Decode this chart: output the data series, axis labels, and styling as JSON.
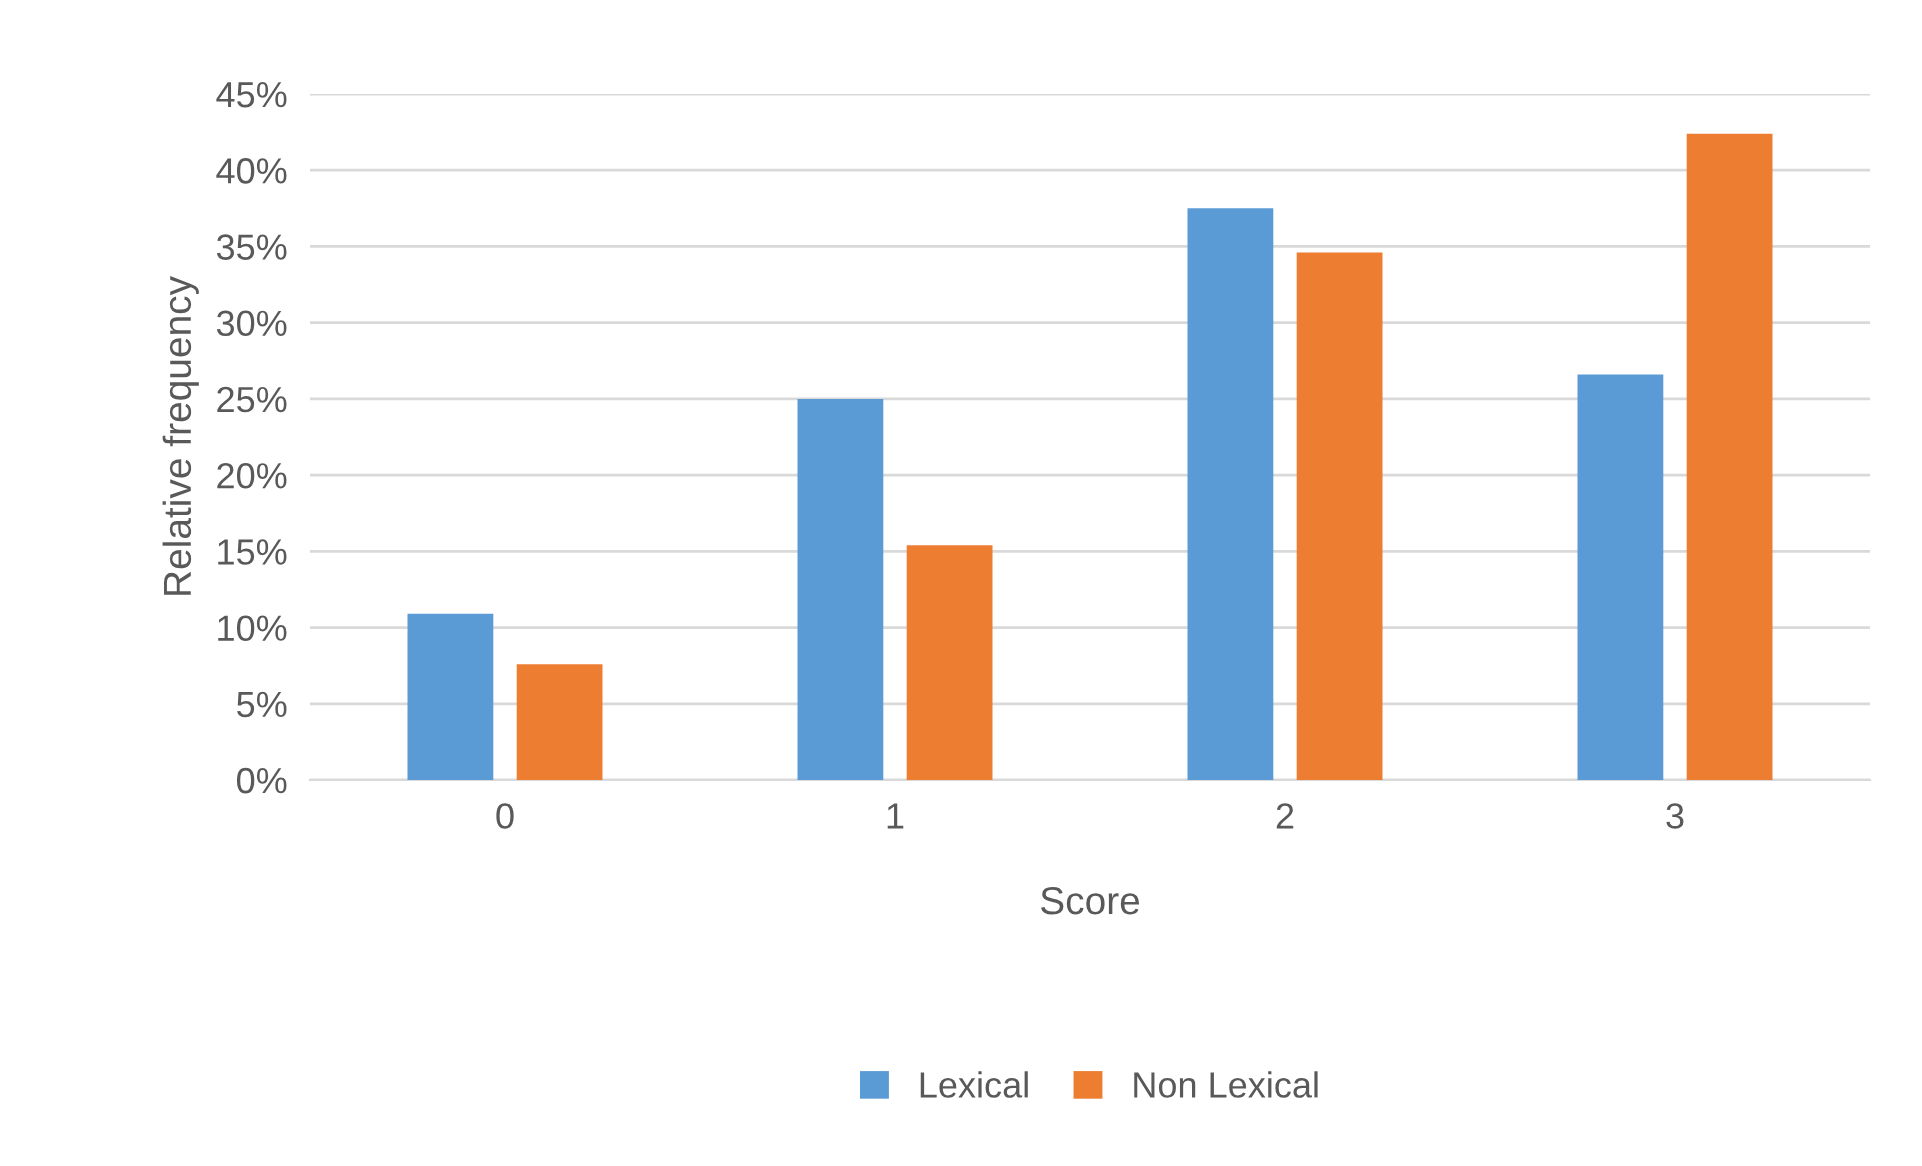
{
  "chart_data": {
    "type": "bar",
    "xlabel": "Score",
    "ylabel": "Relative frequency",
    "categories": [
      "0",
      "1",
      "2",
      "3"
    ],
    "series": [
      {
        "name": "Lexical",
        "color": "#5b9bd5",
        "values": [
          10.9,
          25.0,
          37.5,
          26.6
        ]
      },
      {
        "name": "Non Lexical",
        "color": "#ed7d31",
        "values": [
          7.6,
          15.4,
          34.6,
          42.4
        ]
      }
    ],
    "ylim": [
      0,
      45
    ],
    "yticks": [
      {
        "value": 0,
        "label": "0%"
      },
      {
        "value": 5,
        "label": "5%"
      },
      {
        "value": 10,
        "label": "10%"
      },
      {
        "value": 15,
        "label": "15%"
      },
      {
        "value": 20,
        "label": "20%"
      },
      {
        "value": 25,
        "label": "25%"
      },
      {
        "value": 30,
        "label": "30%"
      },
      {
        "value": 35,
        "label": "35%"
      },
      {
        "value": 40,
        "label": "40%"
      },
      {
        "value": 45,
        "label": "45%"
      }
    ],
    "grid": "y",
    "legend": "bottom"
  }
}
